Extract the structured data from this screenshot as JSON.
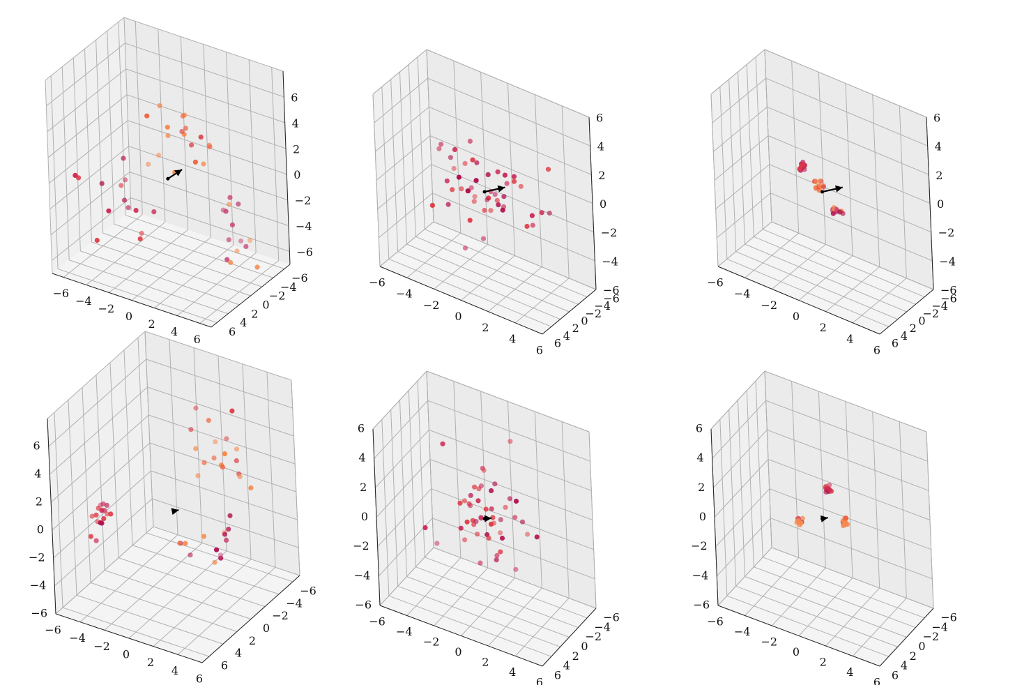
{
  "figure": {
    "background": "#ffffff",
    "pane_colors": {
      "left": "#f0f0f0",
      "right": "#ebebeb",
      "floor": "#f4f4f4"
    },
    "grid_color": "#b0b0b0",
    "marker_colors": [
      "#b1124f",
      "#cc2a56",
      "#de3c45",
      "#ee6440",
      "#f58a4e",
      "#c94a7a"
    ],
    "arrow_color": "#000000"
  },
  "chart_data": [
    {
      "type": "scatter",
      "projection": "3d",
      "grid": true,
      "xlim": [
        -7,
        7
      ],
      "ylim": [
        -7,
        7
      ],
      "zlim": [
        -7,
        8
      ],
      "x_ticks": [
        "−6",
        "−4",
        "−2",
        "0",
        "2",
        "4",
        "6"
      ],
      "y_ticks": [
        "−6",
        "−4",
        "−2",
        "0",
        "2",
        "4",
        "6"
      ],
      "z_ticks": [
        "−6",
        "−4",
        "−2",
        "0",
        "2",
        "4",
        "6"
      ],
      "arrow": {
        "start": [
          0,
          0,
          0
        ],
        "end": [
          1.6,
          0.6,
          1.4
        ]
      },
      "clusters": [
        {
          "center": [
            -5,
            -0.5,
            -3.5
          ],
          "spread": 1.5,
          "n": 14
        },
        {
          "center": [
            3,
            4,
            5.5
          ],
          "spread": 1.4,
          "n": 18
        },
        {
          "center": [
            4.5,
            -2,
            -4
          ],
          "spread": 1.3,
          "n": 14
        }
      ]
    },
    {
      "type": "scatter",
      "projection": "3d",
      "grid": true,
      "xlim": [
        -6,
        6
      ],
      "ylim": [
        -6,
        6
      ],
      "zlim": [
        -6,
        6
      ],
      "x_ticks": [
        "−6",
        "−4",
        "−2",
        "0",
        "2",
        "4",
        "6"
      ],
      "y_ticks": [
        "−6",
        "−4",
        "−2",
        "0",
        "2",
        "4",
        "6"
      ],
      "z_ticks": [
        "−6",
        "−4",
        "−2",
        "0",
        "2",
        "4",
        "6"
      ],
      "arrow": {
        "start": [
          0,
          0,
          0
        ],
        "end": [
          1.8,
          0.7,
          1.2
        ]
      },
      "clusters": [
        {
          "center": [
            0,
            0,
            0
          ],
          "spread": 1.7,
          "n": 48
        }
      ]
    },
    {
      "type": "scatter",
      "projection": "3d",
      "grid": true,
      "xlim": [
        -6,
        6
      ],
      "ylim": [
        -6,
        6
      ],
      "zlim": [
        -6,
        6
      ],
      "x_ticks": [
        "−6",
        "−4",
        "−2",
        "0",
        "2",
        "4",
        "6"
      ],
      "y_ticks": [
        "−6",
        "−4",
        "−2",
        "0",
        "2",
        "4",
        "6"
      ],
      "z_ticks": [
        "−6",
        "−4",
        "−2",
        "0",
        "2",
        "4",
        "6"
      ],
      "arrow": {
        "start": [
          0,
          0,
          0
        ],
        "end": [
          1.8,
          0.7,
          1.2
        ]
      },
      "clusters": [
        {
          "center": [
            -1.3,
            0.2,
            1.3
          ],
          "spread": 0.18,
          "n": 14
        },
        {
          "center": [
            -0.3,
            0.1,
            0.4
          ],
          "spread": 0.2,
          "n": 14
        },
        {
          "center": [
            0.8,
            -0.6,
            -1.2
          ],
          "spread": 0.18,
          "n": 14
        }
      ]
    },
    {
      "type": "scatter",
      "projection": "3d",
      "grid": true,
      "xlim": [
        -6,
        6
      ],
      "ylim": [
        -7,
        7
      ],
      "zlim": [
        -6,
        8
      ],
      "x_ticks": [
        "−6",
        "−4",
        "−2",
        "0",
        "2",
        "4",
        "6"
      ],
      "y_ticks": [
        "−6",
        "−4",
        "−2",
        "0",
        "2",
        "4",
        "6"
      ],
      "z_ticks": [
        "−6",
        "−4",
        "−2",
        "0",
        "2",
        "4",
        "6"
      ],
      "arrow": {
        "start": [
          0,
          0,
          0
        ],
        "end": [
          0.5,
          0.2,
          0.3
        ]
      },
      "clusters": [
        {
          "center": [
            -5,
            2,
            -1
          ],
          "spread": 0.6,
          "n": 16
        },
        {
          "center": [
            2,
            -3,
            4
          ],
          "spread": 1.3,
          "n": 18
        },
        {
          "center": [
            4,
            1,
            -1
          ],
          "spread": 1.2,
          "n": 14
        }
      ]
    },
    {
      "type": "scatter",
      "projection": "3d",
      "grid": true,
      "xlim": [
        -6,
        6
      ],
      "ylim": [
        -6,
        6
      ],
      "zlim": [
        -6,
        6
      ],
      "x_ticks": [
        "−6",
        "−4",
        "−2",
        "0",
        "2",
        "4",
        "6"
      ],
      "y_ticks": [
        "−6",
        "−4",
        "−2",
        "0",
        "2",
        "4",
        "6"
      ],
      "z_ticks": [
        "−6",
        "−4",
        "−2",
        "0",
        "2",
        "4",
        "6"
      ],
      "arrow": {
        "start": [
          0,
          0,
          0
        ],
        "end": [
          0.6,
          0.2,
          0.3
        ]
      },
      "clusters": [
        {
          "center": [
            0,
            0,
            0
          ],
          "spread": 1.6,
          "n": 48
        }
      ]
    },
    {
      "type": "scatter",
      "projection": "3d",
      "grid": true,
      "xlim": [
        -6,
        6
      ],
      "ylim": [
        -6,
        6
      ],
      "zlim": [
        -6,
        6
      ],
      "x_ticks": [
        "−6",
        "−4",
        "−2",
        "0",
        "2",
        "4",
        "6"
      ],
      "y_ticks": [
        "−6",
        "−4",
        "−2",
        "0",
        "2",
        "4",
        "6"
      ],
      "z_ticks": [
        "−6",
        "−4",
        "−2",
        "0",
        "2",
        "4",
        "6"
      ],
      "arrow": {
        "start": [
          0,
          0,
          0
        ],
        "end": [
          0.5,
          0.2,
          0.3
        ]
      },
      "clusters": [
        {
          "center": [
            0.4,
            -0.3,
            2.0
          ],
          "spread": 0.15,
          "n": 14
        },
        {
          "center": [
            1.6,
            -0.2,
            0.3
          ],
          "spread": 0.15,
          "n": 14
        },
        {
          "center": [
            -1.6,
            0.3,
            -0.6
          ],
          "spread": 0.15,
          "n": 12
        }
      ]
    }
  ]
}
